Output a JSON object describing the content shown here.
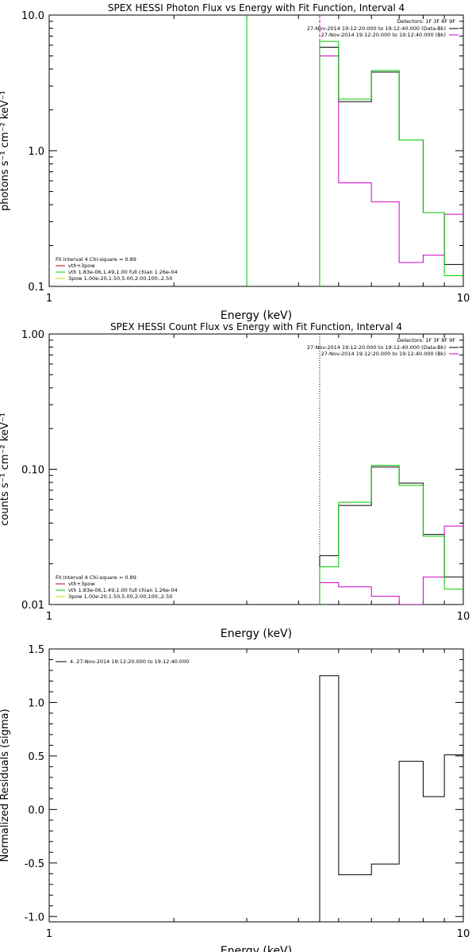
{
  "chart_data": [
    {
      "type": "line",
      "title": "SPEX HESSI Photon Flux vs Energy with Fit Function, Interval 4",
      "xlabel": "Energy (keV)",
      "ylabel": "photons s⁻¹ cm⁻² keV⁻¹",
      "xscale": "log",
      "yscale": "log",
      "xlim": [
        1,
        10
      ],
      "ylim": [
        0.1,
        10
      ],
      "xticks": [
        "1",
        "10"
      ],
      "yticks": [
        "0.1",
        "1.0",
        "10.0"
      ],
      "vlines": [
        {
          "x": 3.0,
          "color": "#00cc00",
          "style": "solid"
        },
        {
          "x": 4.5,
          "color": "#cc00cc",
          "style": "dashed"
        }
      ],
      "legend_top": {
        "title": "Detectors: 1F 3F 8F 9F",
        "entries": [
          {
            "text": "27-Nov-2014 19:12:20.000 to 19:12:40.000 (Data-Bk)",
            "color": "#000000"
          },
          {
            "text": "27-Nov-2014 19:12:20.000 to 19:12:40.000 (Bk)",
            "color": "#cc00cc"
          }
        ]
      },
      "legend_bottom": {
        "title": "Fit Interval  4   Chi-square = 0.89",
        "entries": [
          {
            "text": "vth+3pow",
            "color": "#cc0000"
          },
          {
            "text": "vth 1.83e-06,1.49,1.00  full chian 1.26e-04",
            "color": "#00cc00"
          },
          {
            "text": "3pow 1.00e-20,1.50,5.00,2.00,100.,2.50",
            "color": "#cccc00"
          }
        ]
      },
      "series": [
        {
          "name": "27-Nov-2014 19:12:20.000 to 19:12:40.000 (Data-Bk)",
          "color": "#000000",
          "bins": [
            4.5,
            5,
            6,
            7,
            8,
            9,
            10
          ],
          "values": [
            5.8,
            2.3,
            3.8,
            1.2,
            0.35,
            0.145
          ]
        },
        {
          "name": "27-Nov-2014 19:12:20.000 to 19:12:40.000 (Bk)",
          "color": "#cc00cc",
          "bins": [
            4.5,
            5,
            6,
            7,
            8,
            9,
            10
          ],
          "values": [
            5.0,
            0.58,
            0.42,
            0.15,
            0.17,
            0.34
          ]
        },
        {
          "name": "vth 1.83e-06,1.49,1.00  full chian 1.26e-04",
          "color": "#00cc00",
          "bins": [
            4.5,
            5,
            6,
            7,
            8,
            9,
            10
          ],
          "values": [
            6.4,
            2.4,
            3.9,
            1.2,
            0.35,
            0.12
          ]
        }
      ]
    },
    {
      "type": "line",
      "title": "SPEX HESSI Count Flux vs Energy with Fit Function, Interval 4",
      "xlabel": "Energy (keV)",
      "ylabel": "counts s⁻¹ cm⁻² keV⁻¹",
      "xscale": "log",
      "yscale": "log",
      "xlim": [
        1,
        10
      ],
      "ylim": [
        0.01,
        1
      ],
      "xticks": [
        "1",
        "10"
      ],
      "yticks": [
        "0.01",
        "0.10",
        "1.00"
      ],
      "vlines": [
        {
          "x": 4.5,
          "color": "#000000",
          "style": "dotted"
        }
      ],
      "legend_top": {
        "title": "Detectors: 1F 3F 8F 9F",
        "entries": [
          {
            "text": "27-Nov-2014 19:12:20.000 to 19:12:40.000 (Data-Bk)",
            "color": "#000000"
          },
          {
            "text": "27-Nov-2014 19:12:20.000 to 19:12:40.000 (Bk)",
            "color": "#cc00cc"
          }
        ]
      },
      "legend_bottom": {
        "title": "Fit Interval  4   Chi-square = 0.89",
        "entries": [
          {
            "text": "vth+3pow",
            "color": "#cc0000"
          },
          {
            "text": "vth 1.83e-06,1.49,1.00  full chian 1.26e-04",
            "color": "#00cc00"
          },
          {
            "text": "3pow 1.00e-20,1.50,5.00,2.00,100.,2.50",
            "color": "#cccc00"
          }
        ]
      },
      "series": [
        {
          "name": "27-Nov-2014 19:12:20.000 to 19:12:40.000 (Data-Bk)",
          "color": "#000000",
          "bins": [
            4.5,
            5,
            6,
            7,
            8,
            9,
            10
          ],
          "values": [
            0.023,
            0.054,
            0.104,
            0.079,
            0.033,
            0.016
          ]
        },
        {
          "name": "27-Nov-2014 19:12:20.000 to 19:12:40.000 (Bk)",
          "color": "#cc00cc",
          "bins": [
            4.5,
            5,
            6,
            7,
            8,
            9,
            10
          ],
          "values": [
            0.0145,
            0.0135,
            0.0115,
            0.01,
            0.016,
            0.038
          ]
        },
        {
          "name": "vth 1.83e-06,1.49,1.00  full chian 1.26e-04",
          "color": "#00cc00",
          "bins": [
            4.5,
            5,
            6,
            7,
            8,
            9,
            10
          ],
          "values": [
            0.019,
            0.057,
            0.107,
            0.076,
            0.032,
            0.013
          ]
        }
      ]
    },
    {
      "type": "line",
      "title": "",
      "xlabel": "Energy (keV)",
      "ylabel": "Normalized Residuals (sigma)",
      "xscale": "log",
      "yscale": "linear",
      "xlim": [
        1,
        10
      ],
      "ylim": [
        -1.05,
        1.5
      ],
      "xticks": [
        "1",
        "10"
      ],
      "yticks": [
        "-1.0",
        "-0.5",
        "0.0",
        "0.5",
        "1.0",
        "1.5"
      ],
      "vlines": [],
      "legend_top": {
        "title": "",
        "entries": [
          {
            "text": "4. 27-Nov-2014 19:12:20.000 to 19:12:40.000",
            "color": "#000000"
          }
        ]
      },
      "legend_bottom": {
        "title": "",
        "entries": []
      },
      "series": [
        {
          "name": "4. 27-Nov-2014 19:12:20.000 to 19:12:40.000",
          "color": "#000000",
          "bins": [
            4.5,
            5,
            6,
            7,
            8,
            9,
            10
          ],
          "values": [
            1.25,
            -0.61,
            -0.51,
            0.45,
            0.12,
            0.51
          ]
        }
      ]
    }
  ]
}
